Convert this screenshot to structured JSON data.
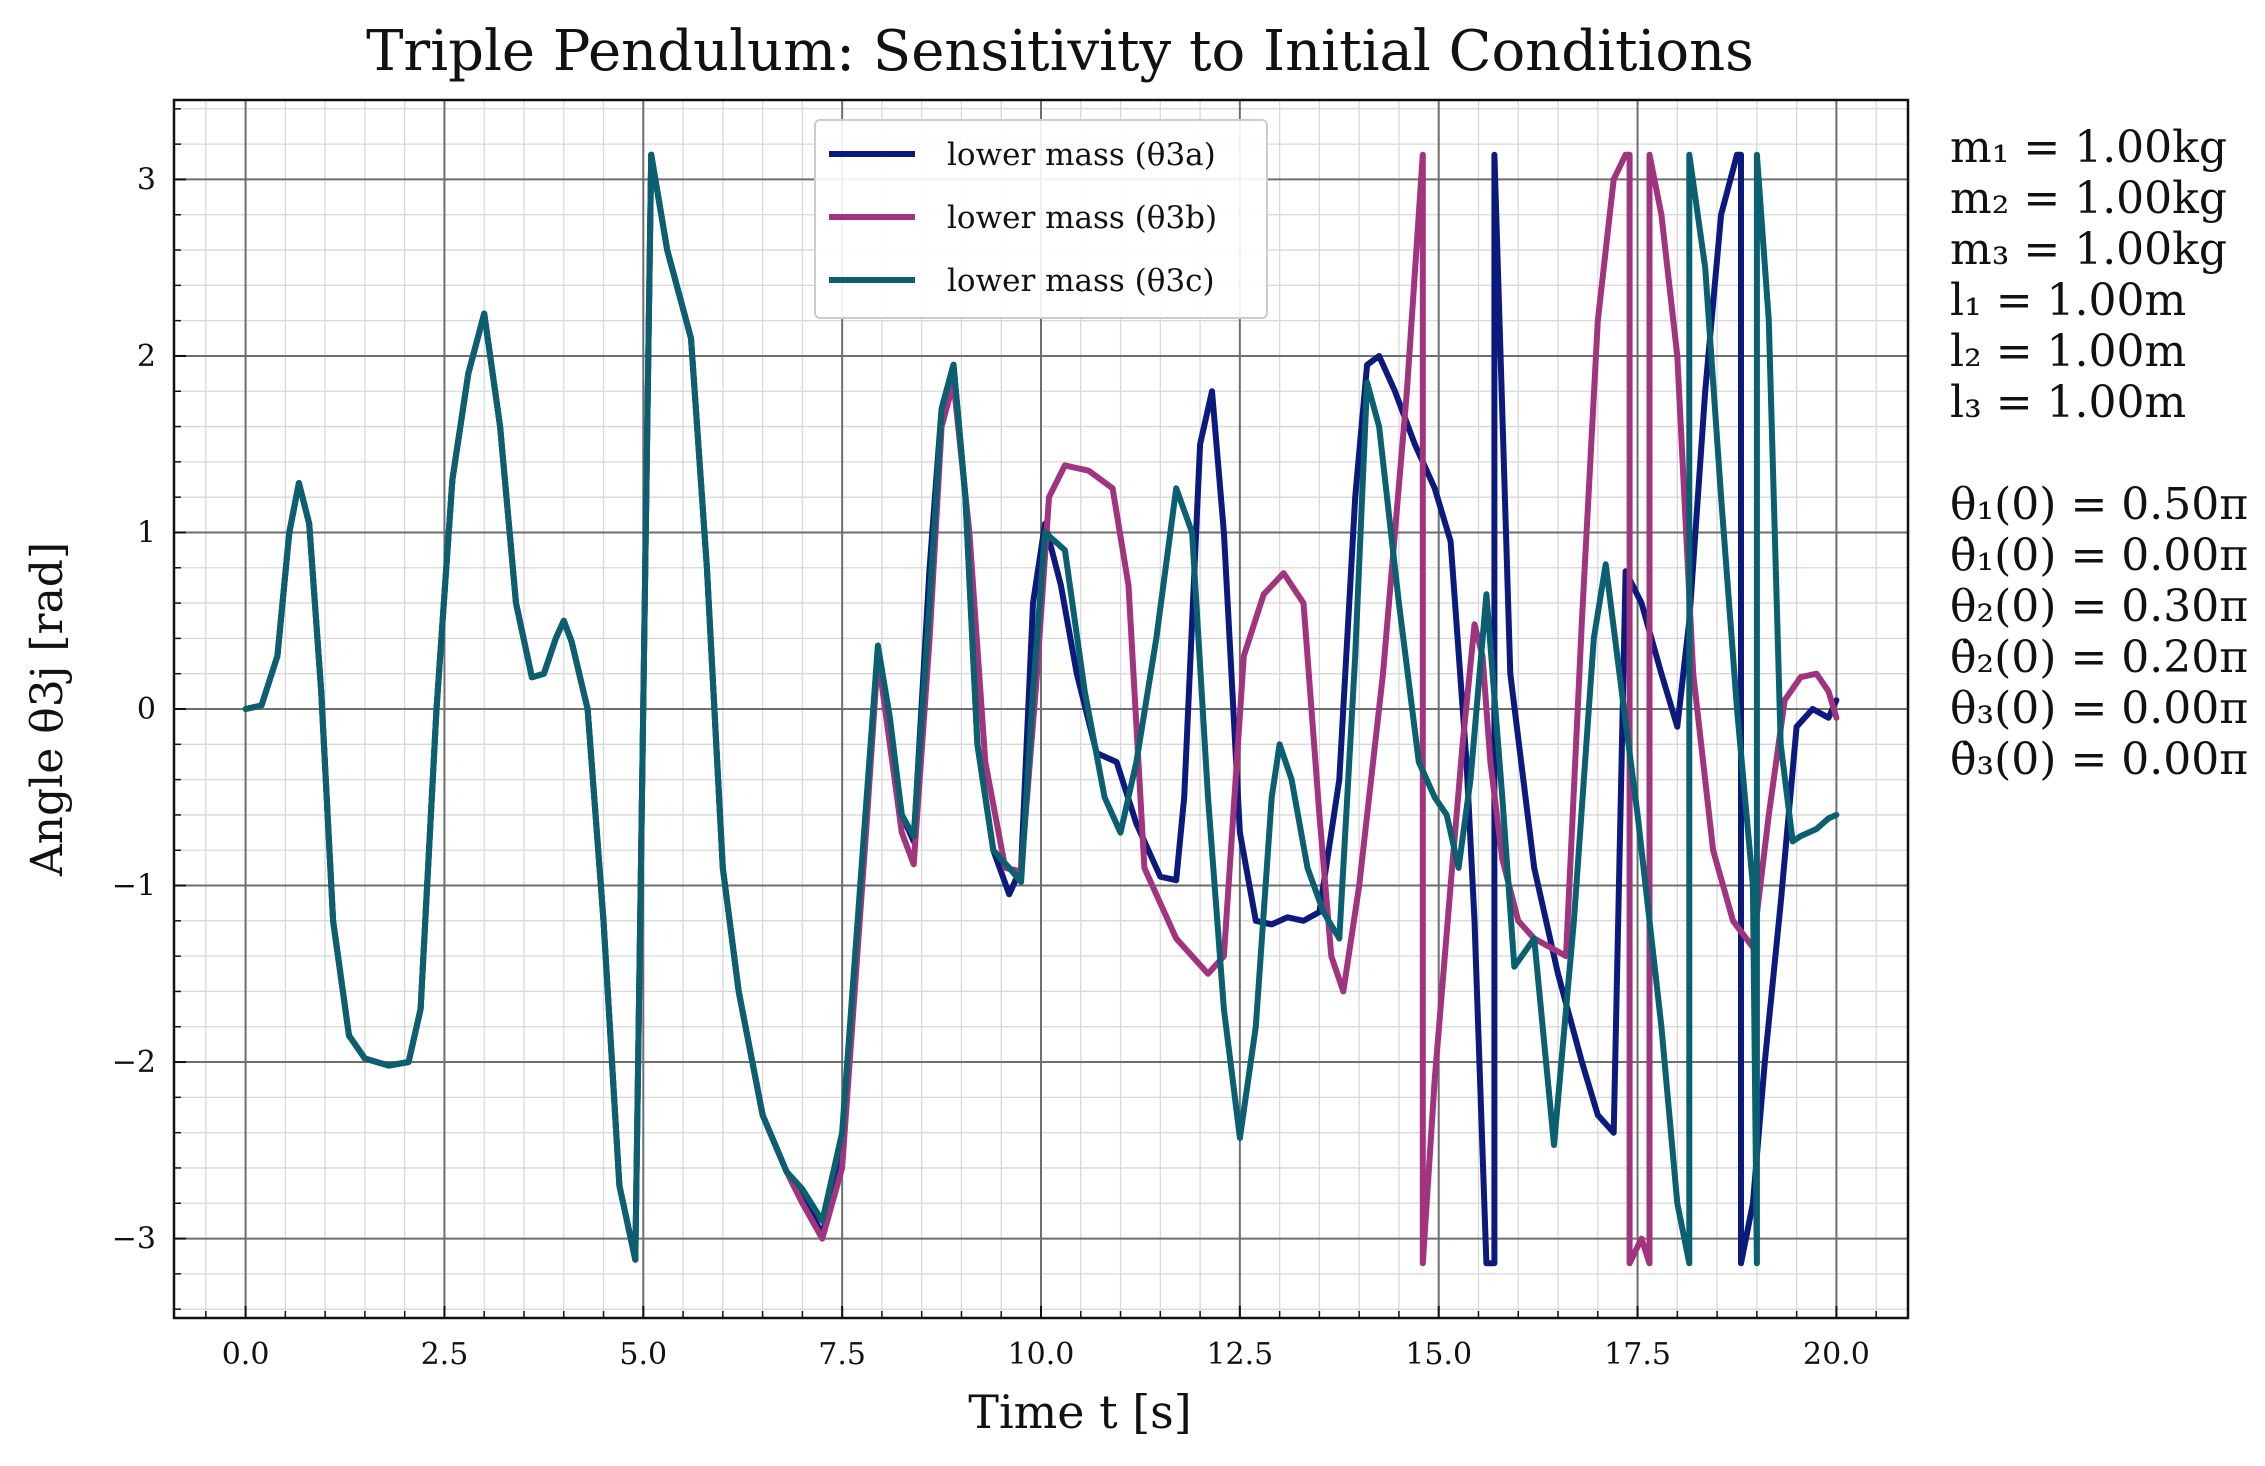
{
  "chart_data": {
    "type": "line",
    "title": "Triple Pendulum: Sensitivity to Initial Conditions",
    "xlabel": "Time t [s]",
    "ylabel": "Angle θ3j [rad]",
    "xlim": [
      -0.9,
      20.9
    ],
    "ylim": [
      -3.45,
      3.45
    ],
    "xticks": [
      "0.0",
      "2.5",
      "5.0",
      "7.5",
      "10.0",
      "12.5",
      "15.0",
      "17.5",
      "20.0"
    ],
    "yticks": [
      "−3",
      "−2",
      "−1",
      "0",
      "1",
      "2",
      "3"
    ],
    "grid": true,
    "minor_grid": true,
    "legend_position": "top-center",
    "colors": {
      "a": "#0c1a7d",
      "b": "#a0347e",
      "c": "#0a6070",
      "major_grid": "#6e6e6e",
      "minor_grid": "#d8d8d8"
    },
    "series": [
      {
        "name": "lower mass (θ3a)",
        "x": [
          0,
          0.2,
          0.4,
          0.55,
          0.67,
          0.8,
          0.95,
          1.1,
          1.3,
          1.5,
          1.8,
          2.05,
          2.2,
          2.4,
          2.6,
          2.8,
          3.0,
          3.2,
          3.4,
          3.6,
          3.75,
          3.9,
          4.0,
          4.1,
          4.3,
          4.5,
          4.7,
          4.9,
          5.1,
          5.1,
          5.3,
          5.6,
          5.8,
          6.0,
          6.2,
          6.5,
          6.8,
          7.0,
          7.25,
          7.5,
          7.8,
          7.95,
          8.1,
          8.25,
          8.4,
          8.6,
          8.75,
          8.9,
          9.05,
          9.2,
          9.4,
          9.6,
          9.75,
          9.9,
          10.05,
          10.25,
          10.45,
          10.7,
          10.95,
          11.2,
          11.5,
          11.7,
          11.8,
          12.0,
          12.15,
          12.3,
          12.5,
          12.7,
          12.9,
          13.1,
          13.3,
          13.5,
          13.75,
          13.95,
          14.1,
          14.25,
          14.45,
          14.7,
          14.95,
          15.15,
          15.35,
          15.45,
          15.6,
          15.7,
          15.7,
          15.9,
          16.2,
          16.5,
          16.8,
          17.0,
          17.2,
          17.35,
          17.55,
          17.8,
          18.0,
          18.15,
          18.35,
          18.55,
          18.75,
          18.8,
          18.8,
          18.95,
          19.1,
          19.3,
          19.5,
          19.7,
          19.9,
          20.0
        ],
        "y": [
          0,
          0.02,
          0.3,
          1.0,
          1.28,
          1.05,
          0.1,
          -1.2,
          -1.85,
          -1.98,
          -2.02,
          -2.0,
          -1.7,
          0.0,
          1.3,
          1.9,
          2.24,
          1.6,
          0.6,
          0.18,
          0.2,
          0.4,
          0.5,
          0.38,
          0.0,
          -1.2,
          -2.7,
          -3.12,
          3.14,
          3.14,
          2.6,
          2.1,
          0.8,
          -0.9,
          -1.6,
          -2.3,
          -2.62,
          -2.75,
          -2.98,
          -2.5,
          -0.6,
          0.34,
          -0.1,
          -0.6,
          -0.75,
          0.8,
          1.7,
          1.95,
          1.2,
          -0.2,
          -0.8,
          -1.05,
          -0.9,
          0.6,
          1.05,
          0.7,
          0.2,
          -0.25,
          -0.3,
          -0.65,
          -0.95,
          -0.97,
          -0.5,
          1.5,
          1.8,
          1.0,
          -0.7,
          -1.2,
          -1.22,
          -1.18,
          -1.2,
          -1.15,
          -0.4,
          1.2,
          1.95,
          2.0,
          1.8,
          1.5,
          1.25,
          0.95,
          -0.3,
          -1.2,
          -3.14,
          -3.14,
          3.14,
          0.2,
          -0.9,
          -1.5,
          -2.0,
          -2.3,
          -2.4,
          0.78,
          0.6,
          0.2,
          -0.1,
          0.5,
          1.8,
          2.8,
          3.14,
          3.14,
          -3.14,
          -2.8,
          -2.0,
          -1.1,
          -0.1,
          0.0,
          -0.05,
          0.05
        ]
      },
      {
        "name": "lower mass (θ3b)",
        "x": [
          0,
          0.2,
          0.4,
          0.55,
          0.67,
          0.8,
          0.95,
          1.1,
          1.3,
          1.5,
          1.8,
          2.05,
          2.2,
          2.4,
          2.6,
          2.8,
          3.0,
          3.2,
          3.4,
          3.6,
          3.75,
          3.9,
          4.0,
          4.1,
          4.3,
          4.5,
          4.7,
          4.9,
          5.1,
          5.1,
          5.3,
          5.6,
          5.8,
          6.0,
          6.2,
          6.5,
          6.8,
          7.0,
          7.25,
          7.5,
          7.8,
          7.95,
          8.1,
          8.25,
          8.4,
          8.6,
          8.75,
          8.9,
          9.1,
          9.3,
          9.55,
          9.75,
          9.95,
          10.1,
          10.3,
          10.6,
          10.9,
          11.1,
          11.3,
          11.7,
          12.1,
          12.3,
          12.55,
          12.8,
          13.05,
          13.3,
          13.5,
          13.65,
          13.8,
          14.0,
          14.3,
          14.6,
          14.8,
          14.8,
          14.95,
          15.15,
          15.3,
          15.45,
          15.55,
          15.65,
          15.8,
          16.0,
          16.2,
          16.4,
          16.6,
          16.8,
          17.0,
          17.2,
          17.35,
          17.4,
          17.4,
          17.55,
          17.65,
          17.65,
          17.8,
          18.0,
          18.2,
          18.45,
          18.7,
          18.95,
          19.15,
          19.35,
          19.55,
          19.75,
          19.9,
          20.0
        ],
        "y": [
          0,
          0.02,
          0.3,
          1.0,
          1.28,
          1.05,
          0.1,
          -1.2,
          -1.85,
          -1.98,
          -2.02,
          -2.0,
          -1.7,
          0.0,
          1.3,
          1.9,
          2.24,
          1.6,
          0.6,
          0.18,
          0.2,
          0.4,
          0.5,
          0.38,
          0.0,
          -1.2,
          -2.7,
          -3.12,
          3.14,
          3.14,
          2.6,
          2.1,
          0.8,
          -0.9,
          -1.6,
          -2.3,
          -2.62,
          -2.8,
          -3.0,
          -2.6,
          -0.7,
          0.3,
          -0.2,
          -0.7,
          -0.88,
          0.4,
          1.6,
          1.85,
          1.0,
          -0.3,
          -0.9,
          -0.92,
          0.2,
          1.2,
          1.38,
          1.35,
          1.25,
          0.7,
          -0.9,
          -1.3,
          -1.5,
          -1.4,
          0.3,
          0.65,
          0.77,
          0.6,
          -0.6,
          -1.4,
          -1.6,
          -1.0,
          0.2,
          1.8,
          3.14,
          -3.14,
          -2.1,
          -1.0,
          -0.2,
          0.48,
          0.3,
          -0.3,
          -0.85,
          -1.2,
          -1.3,
          -1.35,
          -1.4,
          0.5,
          2.2,
          3.0,
          3.14,
          3.14,
          -3.14,
          -3.0,
          -3.14,
          3.14,
          2.8,
          2.0,
          0.2,
          -0.8,
          -1.2,
          -1.35,
          -0.6,
          0.05,
          0.18,
          0.2,
          0.1,
          -0.05
        ]
      },
      {
        "name": "lower mass (θ3c)",
        "x": [
          0,
          0.2,
          0.4,
          0.55,
          0.67,
          0.8,
          0.95,
          1.1,
          1.3,
          1.5,
          1.8,
          2.05,
          2.2,
          2.4,
          2.6,
          2.8,
          3.0,
          3.2,
          3.4,
          3.6,
          3.75,
          3.9,
          4.0,
          4.1,
          4.3,
          4.5,
          4.7,
          4.9,
          5.1,
          5.1,
          5.3,
          5.6,
          5.8,
          6.0,
          6.2,
          6.5,
          6.8,
          7.0,
          7.25,
          7.5,
          7.8,
          7.95,
          8.1,
          8.25,
          8.4,
          8.6,
          8.75,
          8.9,
          9.05,
          9.2,
          9.4,
          9.6,
          9.75,
          9.9,
          10.05,
          10.3,
          10.55,
          10.8,
          11.0,
          11.2,
          11.45,
          11.7,
          11.9,
          12.1,
          12.3,
          12.5,
          12.7,
          12.9,
          13.0,
          13.15,
          13.35,
          13.55,
          13.75,
          13.95,
          14.1,
          14.25,
          14.5,
          14.75,
          14.95,
          15.1,
          15.25,
          15.4,
          15.6,
          15.8,
          15.95,
          16.2,
          16.45,
          16.7,
          16.95,
          17.1,
          17.3,
          17.5,
          17.8,
          18.0,
          18.15,
          18.15,
          18.35,
          18.55,
          18.75,
          18.95,
          19.0,
          19.0,
          19.15,
          19.3,
          19.45,
          19.55,
          19.75,
          19.9,
          20.0
        ],
        "y": [
          0,
          0.02,
          0.3,
          1.0,
          1.28,
          1.05,
          0.1,
          -1.2,
          -1.85,
          -1.98,
          -2.02,
          -2.0,
          -1.7,
          0.0,
          1.3,
          1.9,
          2.24,
          1.6,
          0.6,
          0.18,
          0.2,
          0.4,
          0.5,
          0.38,
          0.0,
          -1.2,
          -2.7,
          -3.12,
          3.14,
          3.14,
          2.6,
          2.1,
          0.8,
          -0.9,
          -1.6,
          -2.3,
          -2.62,
          -2.72,
          -2.9,
          -2.4,
          -0.55,
          0.36,
          -0.05,
          -0.6,
          -0.72,
          0.6,
          1.7,
          1.95,
          1.2,
          -0.2,
          -0.8,
          -0.9,
          -0.98,
          0.1,
          1.0,
          0.9,
          0.1,
          -0.5,
          -0.7,
          -0.3,
          0.4,
          1.25,
          1.0,
          -0.5,
          -1.7,
          -2.43,
          -1.8,
          -0.5,
          -0.2,
          -0.4,
          -0.9,
          -1.15,
          -1.3,
          0.3,
          1.85,
          1.6,
          0.6,
          -0.3,
          -0.5,
          -0.6,
          -0.9,
          -0.4,
          0.65,
          -0.5,
          -1.46,
          -1.3,
          -2.47,
          -1.2,
          0.4,
          0.82,
          0.1,
          -0.6,
          -1.8,
          -2.8,
          -3.14,
          3.14,
          2.5,
          1.2,
          0.0,
          -1.0,
          -3.14,
          3.14,
          2.2,
          -0.2,
          -0.75,
          -0.72,
          -0.68,
          -0.62,
          -0.6
        ]
      }
    ],
    "legend_entries": [
      "lower mass (θ3a)",
      "lower mass (θ3b)",
      "lower mass (θ3c)"
    ]
  },
  "params": {
    "m1": "m₁ = 1.00kg",
    "m2": "m₂ = 1.00kg",
    "m3": "m₃ = 1.00kg",
    "l1": "l₁ = 1.00m",
    "l2": "l₂ = 1.00m",
    "l3": "l₃ = 1.00m",
    "th1": "θ₁(0) = 0.50π",
    "dth1": "θ̇₁(0) = 0.00π",
    "th2": "θ₂(0) = 0.30π",
    "dth2": "θ̇₂(0) = 0.20π",
    "th3": "θ₃(0) = 0.00π",
    "dth3": "θ̇₃(0) = 0.00π"
  }
}
